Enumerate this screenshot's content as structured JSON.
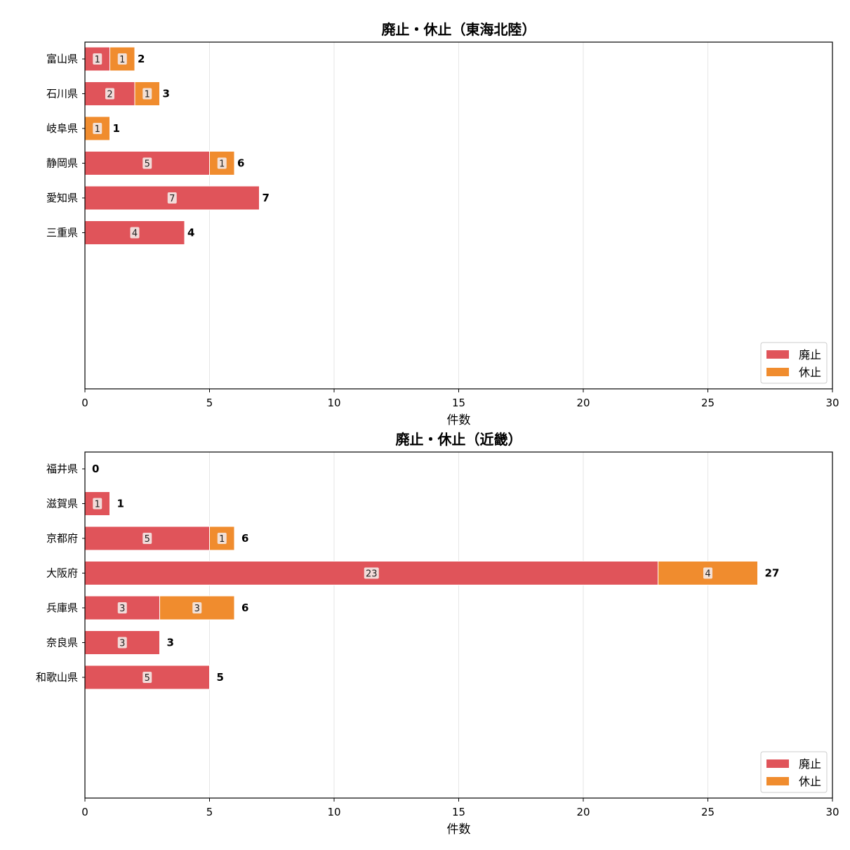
{
  "colors": {
    "haishi": "#e0545a",
    "kyushi": "#f08c2e",
    "grid": "#e6e6e6",
    "axis": "#000000",
    "label_box": "#f3e7e4"
  },
  "chart_data": [
    {
      "type": "bar",
      "orientation": "horizontal",
      "stacked": true,
      "title": "廃止・休止（東海北陸）",
      "xlabel": "件数",
      "ylabel": "",
      "xlim": [
        0,
        30
      ],
      "xticks": [
        "0",
        "5",
        "10",
        "15",
        "20",
        "25",
        "30"
      ],
      "grid": "x",
      "legend": "lower-right",
      "categories": [
        "富山県",
        "石川県",
        "岐阜県",
        "静岡県",
        "愛知県",
        "三重県"
      ],
      "series": [
        {
          "name": "廃止",
          "values": [
            1,
            2,
            0,
            5,
            7,
            4
          ]
        },
        {
          "name": "休止",
          "values": [
            1,
            1,
            1,
            1,
            0,
            0
          ]
        }
      ],
      "totals": [
        2,
        3,
        1,
        6,
        7,
        4
      ]
    },
    {
      "type": "bar",
      "orientation": "horizontal",
      "stacked": true,
      "title": "廃止・休止（近畿）",
      "xlabel": "件数",
      "ylabel": "",
      "xlim": [
        0,
        30
      ],
      "xticks": [
        "0",
        "5",
        "10",
        "15",
        "20",
        "25",
        "30"
      ],
      "grid": "x",
      "legend": "lower-right",
      "categories": [
        "福井県",
        "滋賀県",
        "京都府",
        "大阪府",
        "兵庫県",
        "奈良県",
        "和歌山県"
      ],
      "series": [
        {
          "name": "廃止",
          "values": [
            0,
            1,
            5,
            23,
            3,
            3,
            5
          ]
        },
        {
          "name": "休止",
          "values": [
            0,
            0,
            1,
            4,
            3,
            0,
            0
          ]
        }
      ],
      "totals": [
        0,
        1,
        6,
        27,
        6,
        3,
        5
      ]
    }
  ]
}
